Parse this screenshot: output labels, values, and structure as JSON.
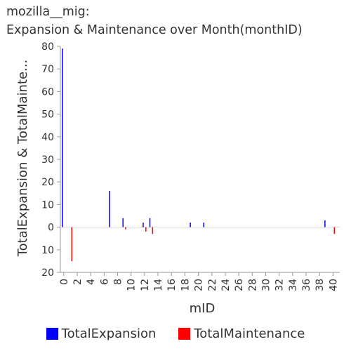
{
  "chart_data": {
    "type": "bar",
    "title_line1": "mozilla__mig:",
    "title_line2": "Expansion & Maintenance over Month(monthID)",
    "xlabel": "mID",
    "ylabel": "TotalExpansion & TotalMainte...",
    "x_ticks": [
      0,
      2,
      4,
      6,
      8,
      10,
      12,
      14,
      16,
      18,
      20,
      22,
      24,
      26,
      28,
      30,
      32,
      34,
      36,
      38,
      40
    ],
    "y_ticks": [
      {
        "value": 80,
        "label": "80"
      },
      {
        "value": 70,
        "label": "70"
      },
      {
        "value": 60,
        "label": "60"
      },
      {
        "value": 50,
        "label": "50"
      },
      {
        "value": 40,
        "label": "40"
      },
      {
        "value": 30,
        "label": "30"
      },
      {
        "value": 20,
        "label": "20"
      },
      {
        "value": 10,
        "label": "10"
      },
      {
        "value": 0,
        "label": "0"
      },
      {
        "value": -10,
        "label": "10"
      },
      {
        "value": -20,
        "label": "20"
      }
    ],
    "ylim": [
      -20,
      80
    ],
    "xlim": [
      -0.5,
      41
    ],
    "grid": false,
    "legend_position": "bottom",
    "series": [
      {
        "name": "TotalExpansion",
        "color": "#0000ff",
        "points": [
          {
            "x": 0,
            "y": 79
          },
          {
            "x": 7,
            "y": 16
          },
          {
            "x": 9,
            "y": 4
          },
          {
            "x": 12,
            "y": 2
          },
          {
            "x": 13,
            "y": 4
          },
          {
            "x": 19,
            "y": 2
          },
          {
            "x": 21,
            "y": 2
          },
          {
            "x": 39,
            "y": 3
          }
        ]
      },
      {
        "name": "TotalMaintenance",
        "color": "#ff0000",
        "points": [
          {
            "x": 1,
            "y": -15
          },
          {
            "x": 9,
            "y": -1
          },
          {
            "x": 12,
            "y": -2
          },
          {
            "x": 13,
            "y": -3
          },
          {
            "x": 40,
            "y": -3
          }
        ]
      }
    ]
  }
}
